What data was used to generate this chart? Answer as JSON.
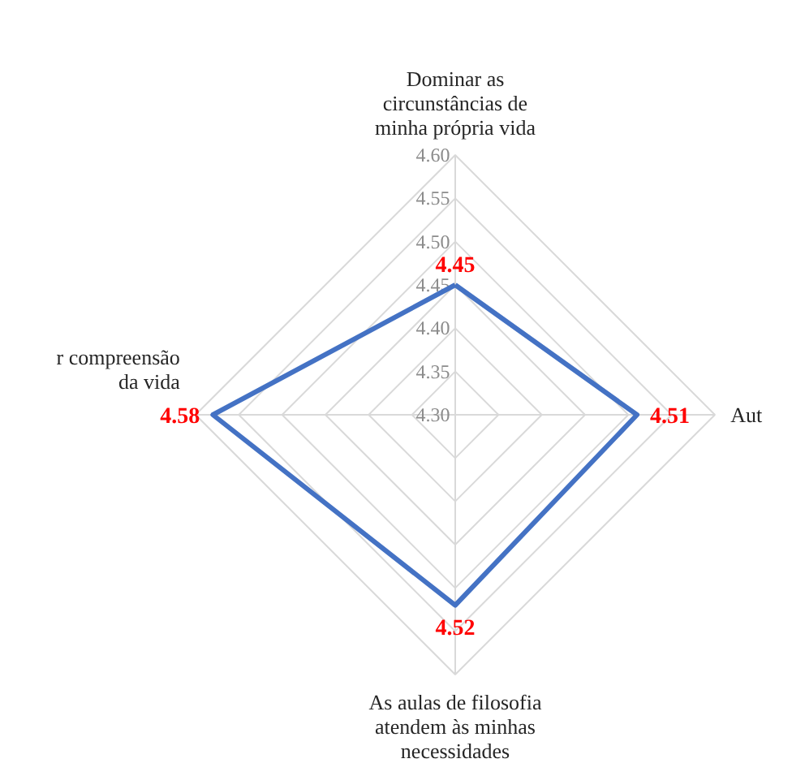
{
  "chart_data": {
    "type": "radar",
    "categories": [
      "Dominar as\ncircunstâncias de\nminha própria vida",
      "Aut",
      "As aulas de filosofia\natendem às minhas\nnecessidades",
      "r compreensão\nda vida"
    ],
    "series": [
      {
        "color": "#4472c4",
        "values": [
          4.45,
          4.51,
          4.52,
          4.58
        ]
      }
    ],
    "ylim": [
      4.3,
      4.6
    ],
    "yticks": [
      {
        "value": 4.3,
        "label": "4.30"
      },
      {
        "value": 4.35,
        "label": "4.35"
      },
      {
        "value": 4.4,
        "label": "4.40"
      },
      {
        "value": 4.45,
        "label": "4.45"
      },
      {
        "value": 4.5,
        "label": "4.50"
      },
      {
        "value": 4.55,
        "label": "4.55"
      },
      {
        "value": 4.6,
        "label": "4.60"
      }
    ],
    "grid": true,
    "data_labels": true,
    "marker": "none",
    "line_style": "solid"
  }
}
